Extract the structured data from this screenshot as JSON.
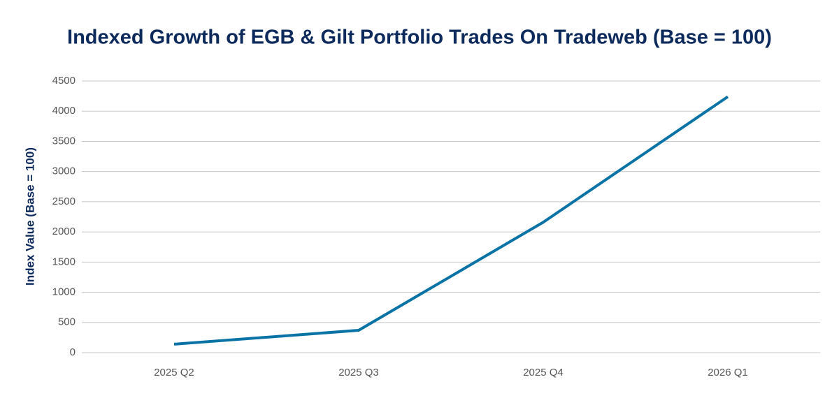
{
  "chart_data": {
    "type": "line",
    "title": "Indexed Growth of EGB & Gilt Portfolio Trades On Tradeweb (Base = 100)",
    "y_label": "Index Value (Base = 100)",
    "categories": [
      "2025 Q2",
      "2025 Q3",
      "2025 Q4",
      "2026 Q1"
    ],
    "series": [
      {
        "name": "Index Value",
        "color": "#0a73a6",
        "values": [
          140,
          370,
          2160,
          4240
        ]
      }
    ],
    "ylim": [
      0,
      4500
    ],
    "yticks": [
      0,
      500,
      1000,
      1500,
      2000,
      2500,
      3000,
      3500,
      4000,
      4500
    ],
    "grid": true
  }
}
